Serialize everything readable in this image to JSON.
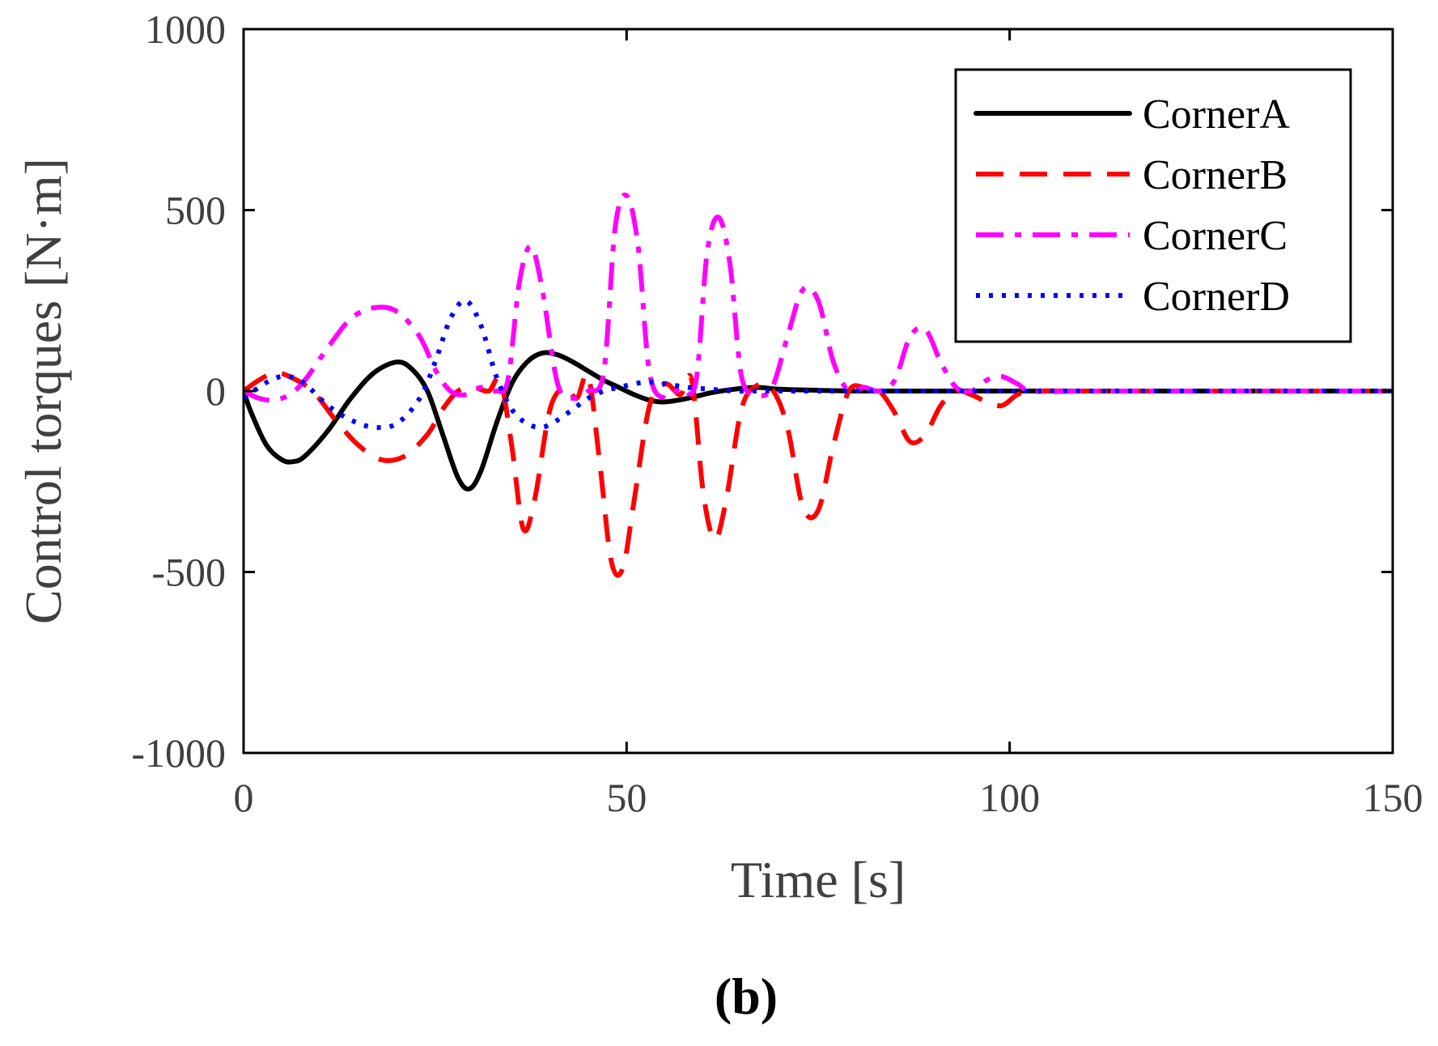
{
  "chart_data": {
    "type": "line",
    "panel_label": "(b)",
    "xlabel": "Time [s]",
    "ylabel": "Control torques [N·m]",
    "xlim": [
      0,
      150
    ],
    "ylim": [
      -1000,
      1000
    ],
    "xticks": [
      0,
      50,
      100,
      150
    ],
    "xtick_labels": [
      "0",
      "50",
      "100",
      "150"
    ],
    "yticks": [
      -1000,
      -500,
      0,
      500,
      1000
    ],
    "ytick_labels": [
      "-1000",
      "-500",
      "0",
      "500",
      "1000"
    ],
    "grid": false,
    "legend_position": "top-right",
    "series": [
      {
        "name": "CornerA",
        "color": "#000000",
        "style": "solid",
        "x": [
          0,
          1,
          3,
          5,
          6.5,
          8,
          11,
          14,
          17,
          20,
          22,
          24,
          26,
          28,
          29.5,
          31,
          33,
          35,
          37,
          39,
          41,
          43,
          45,
          47,
          49,
          51,
          53,
          55,
          58,
          61,
          64,
          67,
          70,
          75,
          80,
          90,
          100,
          110,
          120,
          130,
          140,
          150
        ],
        "y": [
          0,
          -60,
          -150,
          -190,
          -195,
          -180,
          -110,
          -20,
          50,
          80,
          60,
          0,
          -120,
          -240,
          -270,
          -220,
          -90,
          20,
          80,
          105,
          100,
          80,
          55,
          30,
          10,
          -10,
          -25,
          -30,
          -20,
          -5,
          5,
          10,
          5,
          2,
          0,
          0,
          0,
          0,
          0,
          0,
          0,
          0
        ]
      },
      {
        "name": "CornerB",
        "color": "#ff0000",
        "style": "dashed",
        "x": [
          0,
          2,
          4,
          6,
          9,
          12,
          15,
          18,
          21,
          24,
          26,
          28,
          30,
          32,
          33.5,
          35,
          36.5,
          38,
          40,
          42,
          43.5,
          45,
          46.5,
          48,
          49.5,
          51,
          53,
          55,
          57,
          58.5,
          60,
          61.5,
          63,
          65,
          67,
          69,
          71,
          73,
          75,
          77,
          79,
          81,
          83,
          85,
          87,
          89,
          91,
          93,
          95,
          97,
          99,
          101,
          103,
          110,
          120,
          130,
          140,
          150
        ],
        "y": [
          0,
          30,
          50,
          40,
          0,
          -80,
          -150,
          -190,
          -180,
          -120,
          -50,
          0,
          10,
          0,
          30,
          -150,
          -380,
          -300,
          -50,
          10,
          -20,
          40,
          -200,
          -470,
          -490,
          -300,
          -40,
          20,
          -10,
          30,
          -280,
          -410,
          -300,
          -50,
          15,
          5,
          -100,
          -320,
          -330,
          -150,
          0,
          10,
          0,
          -60,
          -140,
          -120,
          -40,
          0,
          -10,
          -30,
          -40,
          -10,
          0,
          0,
          0,
          0,
          0,
          0
        ]
      },
      {
        "name": "CornerC",
        "color": "#ff00ff",
        "style": "dashdot",
        "x": [
          0,
          2,
          4,
          6,
          8,
          11,
          14,
          17,
          20,
          23,
          25,
          27,
          29,
          31,
          33,
          34.5,
          36,
          37.5,
          39,
          41,
          43,
          45,
          47,
          48.5,
          50,
          51.5,
          53,
          55,
          57,
          59,
          60.5,
          62,
          63.5,
          65,
          67,
          69,
          71,
          73,
          75,
          77,
          79,
          81,
          83,
          85,
          87,
          89,
          91,
          93,
          95,
          97,
          99,
          101,
          103,
          110,
          120,
          130,
          140,
          150
        ],
        "y": [
          0,
          -20,
          -25,
          -10,
          30,
          120,
          200,
          230,
          220,
          150,
          60,
          0,
          -10,
          10,
          0,
          30,
          300,
          400,
          280,
          20,
          -20,
          0,
          50,
          450,
          540,
          400,
          50,
          -20,
          10,
          20,
          380,
          480,
          350,
          40,
          -10,
          10,
          150,
          280,
          250,
          80,
          0,
          10,
          0,
          30,
          150,
          170,
          80,
          10,
          0,
          30,
          40,
          20,
          0,
          0,
          0,
          0,
          0,
          0
        ]
      },
      {
        "name": "CornerD",
        "color": "#0000ff",
        "style": "dotted",
        "x": [
          0,
          2,
          4,
          6,
          8,
          11,
          14,
          17,
          20,
          23,
          25,
          27,
          29,
          31,
          33,
          35,
          37,
          39,
          41,
          43,
          45,
          47,
          49,
          51,
          53,
          55,
          58,
          61,
          64,
          67,
          70,
          75,
          80,
          90,
          100,
          110,
          120,
          130,
          140,
          150
        ],
        "y": [
          -20,
          10,
          35,
          40,
          20,
          -40,
          -80,
          -100,
          -90,
          -20,
          80,
          200,
          250,
          180,
          40,
          -50,
          -90,
          -100,
          -80,
          -50,
          -20,
          0,
          10,
          20,
          25,
          20,
          10,
          5,
          0,
          0,
          0,
          0,
          0,
          0,
          0,
          0,
          0,
          0,
          0,
          0
        ]
      }
    ]
  }
}
